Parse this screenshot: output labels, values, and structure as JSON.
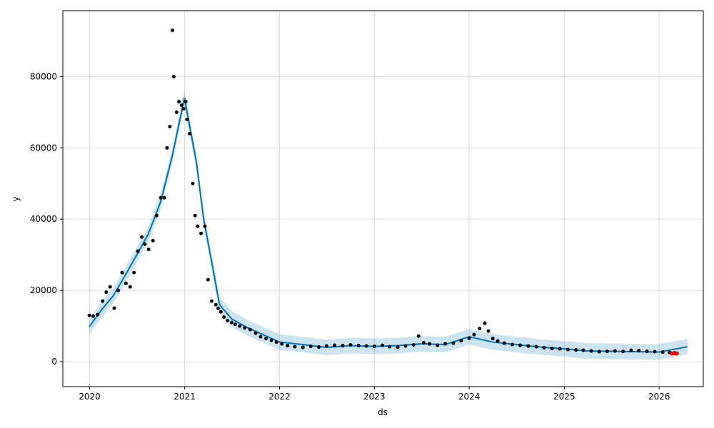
{
  "chart_data": {
    "type": "scatter",
    "title": "",
    "xlabel": "ds",
    "ylabel": "y",
    "xlim": [
      "2019-09-20",
      "2026-06-20"
    ],
    "ylim": [
      -7000,
      98500
    ],
    "x_ticks": [
      "2020",
      "2021",
      "2022",
      "2023",
      "2024",
      "2025",
      "2026"
    ],
    "y_ticks": [
      "0",
      "20000",
      "40000",
      "60000",
      "80000"
    ],
    "grid": true,
    "legend": "none",
    "colors": {
      "observed": "#000000",
      "forecast_line": "#0072B2",
      "uncertainty_band": "#0072B2",
      "highlight": "#ff0000"
    },
    "series": [
      {
        "kind": "observed_points",
        "x": [
          "2019-12-31",
          "2020-01-15",
          "2020-02-01",
          "2020-02-20",
          "2020-03-05",
          "2020-03-20",
          "2020-04-05",
          "2020-04-20",
          "2020-05-05",
          "2020-05-20",
          "2020-06-05",
          "2020-06-20",
          "2020-07-05",
          "2020-07-20",
          "2020-08-01",
          "2020-08-15",
          "2020-09-01",
          "2020-09-15",
          "2020-10-01",
          "2020-10-15",
          "2020-10-25",
          "2020-11-05",
          "2020-11-15",
          "2020-11-20",
          "2020-12-01",
          "2020-12-10",
          "2020-12-20",
          "2020-12-28",
          "2021-01-05",
          "2021-01-10",
          "2021-01-20",
          "2021-02-01",
          "2021-02-10",
          "2021-02-20",
          "2021-03-05",
          "2021-03-20",
          "2021-04-01",
          "2021-04-15",
          "2021-05-01",
          "2021-05-10",
          "2021-05-20",
          "2021-06-01",
          "2021-06-15",
          "2021-07-01",
          "2021-07-15",
          "2021-08-01",
          "2021-08-20",
          "2021-09-10",
          "2021-10-01",
          "2021-10-20",
          "2021-11-10",
          "2021-12-01",
          "2021-12-20",
          "2022-01-10",
          "2022-02-01",
          "2022-03-01",
          "2022-04-01",
          "2022-05-01",
          "2022-06-01",
          "2022-07-01",
          "2022-08-01",
          "2022-09-01",
          "2022-10-01",
          "2022-11-01",
          "2022-12-01",
          "2023-01-01",
          "2023-02-01",
          "2023-03-01",
          "2023-04-01",
          "2023-05-01",
          "2023-06-01",
          "2023-06-20",
          "2023-07-10",
          "2023-08-01",
          "2023-09-01",
          "2023-10-01",
          "2023-11-01",
          "2023-12-01",
          "2024-01-01",
          "2024-01-20",
          "2024-02-10",
          "2024-03-01",
          "2024-03-15",
          "2024-04-01",
          "2024-04-20",
          "2024-05-15",
          "2024-06-15",
          "2024-07-15",
          "2024-08-15",
          "2024-09-15",
          "2024-10-15",
          "2024-11-15",
          "2024-12-15",
          "2025-01-15",
          "2025-02-15",
          "2025-03-15",
          "2025-04-15",
          "2025-05-15",
          "2025-06-15",
          "2025-07-15",
          "2025-08-15",
          "2025-09-15",
          "2025-10-15",
          "2025-11-15",
          "2025-12-15",
          "2026-01-15",
          "2026-02-10"
        ],
        "y": [
          13000,
          12800,
          13200,
          17000,
          19500,
          21000,
          15000,
          20000,
          25000,
          22000,
          21000,
          25000,
          31000,
          35000,
          33000,
          31500,
          34000,
          41000,
          46000,
          46000,
          60000,
          66000,
          93000,
          80000,
          70000,
          73000,
          72000,
          71000,
          73000,
          68000,
          64000,
          50000,
          41000,
          38000,
          36000,
          38000,
          23000,
          17000,
          16000,
          15000,
          14000,
          12500,
          11500,
          11000,
          10500,
          10000,
          9500,
          9000,
          8000,
          7000,
          6500,
          6000,
          5500,
          5000,
          4500,
          4200,
          4000,
          4300,
          4100,
          4400,
          4600,
          4500,
          4700,
          4500,
          4400,
          4300,
          4600,
          4200,
          4100,
          4400,
          4700,
          7200,
          5300,
          5000,
          4600,
          5000,
          5200,
          5900,
          6600,
          7600,
          9300,
          10800,
          8600,
          6500,
          5800,
          5200,
          4800,
          4600,
          4400,
          4200,
          3900,
          3700,
          3600,
          3400,
          3300,
          3200,
          3000,
          2800,
          2900,
          3000,
          2900,
          3200,
          3100,
          2900,
          2800,
          2700,
          2600
        ]
      },
      {
        "kind": "forecast_line",
        "x": [
          "2019-12-31",
          "2020-02-15",
          "2020-04-01",
          "2020-05-15",
          "2020-07-01",
          "2020-08-15",
          "2020-10-01",
          "2020-11-15",
          "2020-12-31",
          "2021-02-15",
          "2021-03-15",
          "2021-04-15",
          "2021-05-15",
          "2021-07-01",
          "2021-09-01",
          "2021-11-01",
          "2022-01-01",
          "2022-04-01",
          "2022-07-01",
          "2022-10-01",
          "2023-01-01",
          "2023-04-01",
          "2023-07-01",
          "2023-10-01",
          "2024-01-01",
          "2024-04-01",
          "2024-07-01",
          "2024-10-01",
          "2025-01-01",
          "2025-04-01",
          "2025-07-01",
          "2025-10-01",
          "2026-01-01",
          "2026-04-20"
        ],
        "y": [
          9800,
          14500,
          18500,
          24000,
          30000,
          36000,
          45000,
          58000,
          74000,
          56000,
          40000,
          28000,
          16000,
          12000,
          9500,
          7500,
          5500,
          4800,
          4000,
          4500,
          4300,
          4500,
          5000,
          4800,
          7000,
          5500,
          4800,
          4100,
          3600,
          3000,
          2900,
          2800,
          2700,
          4200
        ]
      },
      {
        "kind": "red_markers",
        "x": [
          "2026-02-20",
          "2026-03-01",
          "2026-03-10"
        ],
        "y": [
          2300,
          2400,
          2300
        ]
      }
    ]
  }
}
